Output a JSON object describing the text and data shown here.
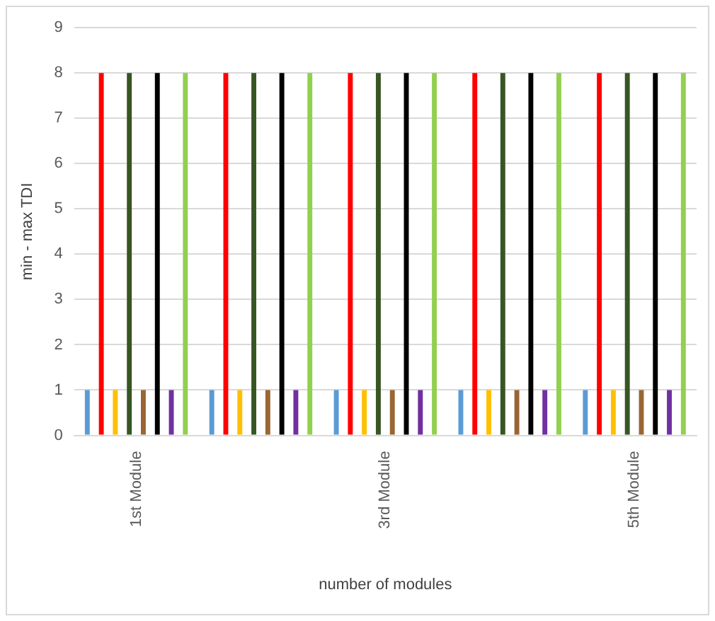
{
  "chart_data": {
    "type": "bar",
    "xlabel": "number of modules",
    "ylabel": "min - max TDI",
    "categories": [
      "1st Module",
      null,
      "3rd Module",
      null,
      "5th Module"
    ],
    "series": [
      {
        "color": "#5b9bd5",
        "values": [
          1,
          1,
          1,
          1,
          1
        ]
      },
      {
        "color": "#ff0000",
        "values": [
          8,
          8,
          8,
          8,
          8
        ]
      },
      {
        "color": "#ffc000",
        "values": [
          1,
          1,
          1,
          1,
          1
        ]
      },
      {
        "color": "#375623",
        "values": [
          8,
          8,
          8,
          8,
          8
        ]
      },
      {
        "color": "#996633",
        "values": [
          1,
          1,
          1,
          1,
          1
        ]
      },
      {
        "color": "#000000",
        "values": [
          8,
          8,
          8,
          8,
          8
        ]
      },
      {
        "color": "#7030a0",
        "values": [
          1,
          1,
          1,
          1,
          1
        ]
      },
      {
        "color": "#92d050",
        "values": [
          8,
          8,
          8,
          8,
          8
        ]
      }
    ],
    "ylim": [
      0,
      9
    ],
    "yticks": [
      0,
      1,
      2,
      3,
      4,
      5,
      6,
      7,
      8,
      9
    ],
    "grid": "y",
    "legend": false
  }
}
